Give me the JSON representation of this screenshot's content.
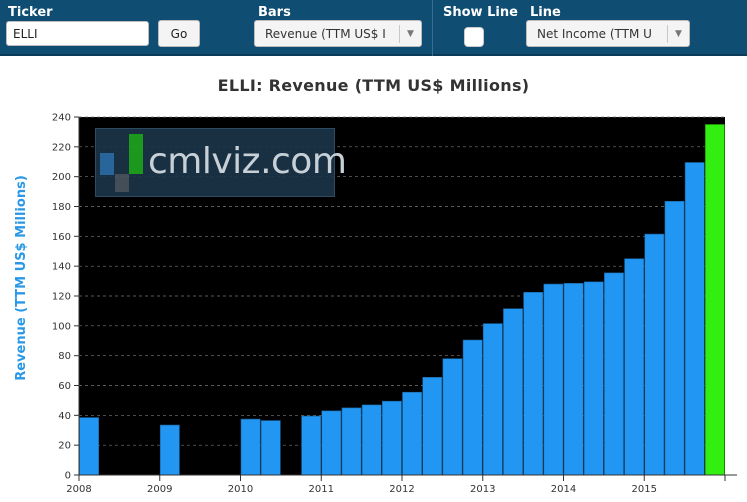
{
  "toolbar": {
    "ticker_label": "Ticker",
    "ticker_value": "ELLI",
    "go_label": "Go",
    "bars_label": "Bars",
    "bars_value": "Revenue (TTM US$ I",
    "show_line_label": "Show Line",
    "line_label": "Line",
    "line_value": "Net Income (TTM U"
  },
  "watermark": {
    "text": "cmlviz.com"
  },
  "colors": {
    "toolbar": "#0f4d73",
    "bar": "#2196f3",
    "highlight": "#33ee11",
    "plot_bg": "#000000"
  },
  "chart_data": {
    "type": "bar",
    "title": "ELLI: Revenue (TTM US$ Millions)",
    "ylabel": "Revenue (TTM US$ Millions)",
    "xlabel": "",
    "ylim": [
      0,
      240
    ],
    "yticks": [
      0,
      20,
      40,
      60,
      80,
      100,
      120,
      140,
      160,
      180,
      200,
      220,
      240
    ],
    "year_labels": [
      "2008",
      "2009",
      "2010",
      "2011",
      "2012",
      "2013",
      "2014",
      "2015"
    ],
    "grid": true,
    "periods": 32,
    "values": [
      38.5,
      null,
      null,
      null,
      33.5,
      null,
      null,
      null,
      37.5,
      36.5,
      null,
      39.5,
      43,
      45,
      47,
      49.5,
      55.5,
      65.5,
      78,
      90.5,
      101.5,
      111.5,
      122.5,
      128,
      128.5,
      129.5,
      135.5,
      145,
      161.5,
      183.5,
      209.5,
      235
    ],
    "highlight_index": 31
  }
}
